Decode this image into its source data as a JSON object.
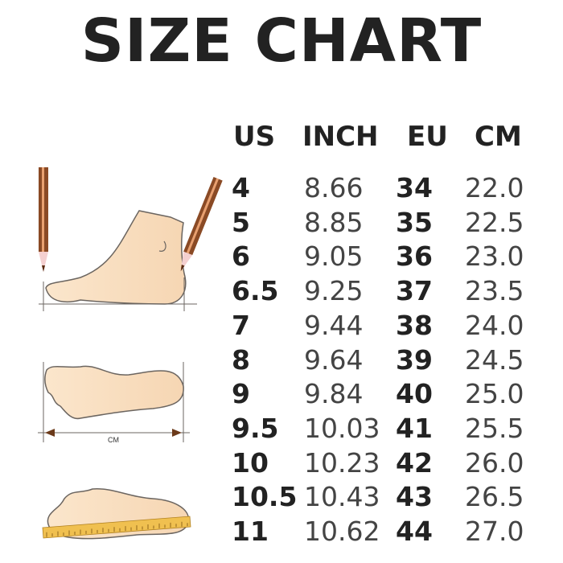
{
  "title": "SIZE CHART",
  "headers": [
    "US",
    "INCH",
    "EU",
    "CM"
  ],
  "rows": [
    [
      "4",
      "8.66",
      "34",
      "22.0"
    ],
    [
      "5",
      "8.85",
      "35",
      "22.5"
    ],
    [
      "6",
      "9.05",
      "36",
      "23.0"
    ],
    [
      "6.5",
      "9.25",
      "37",
      "23.5"
    ],
    [
      "7",
      "9.44",
      "38",
      "24.0"
    ],
    [
      "8",
      "9.64",
      "39",
      "24.5"
    ],
    [
      "9",
      "9.84",
      "40",
      "25.0"
    ],
    [
      "9.5",
      "10.03",
      "41",
      "25.5"
    ],
    [
      "10",
      "10.23",
      "42",
      "26.0"
    ],
    [
      "10.5",
      "10.43",
      "43",
      "26.5"
    ],
    [
      "11",
      "10.62",
      "44",
      "27.0"
    ]
  ],
  "illustration": {
    "measure_label": "CM"
  },
  "colors": {
    "skin": "#f9dfbf",
    "outline": "#6b6560",
    "pencil": "#8a4a25",
    "ruler": "#f0c050"
  }
}
